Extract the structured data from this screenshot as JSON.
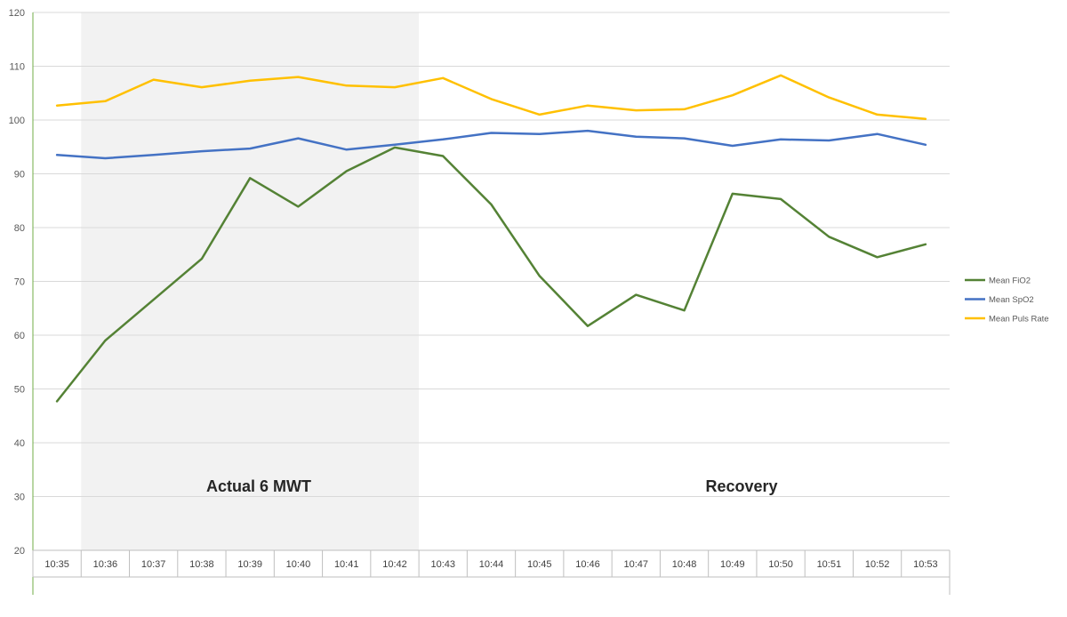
{
  "chart_data": {
    "type": "line",
    "title": "",
    "xlabel": "",
    "ylabel": "",
    "ylim": [
      20,
      120
    ],
    "yticks": [
      20,
      30,
      40,
      50,
      60,
      70,
      80,
      90,
      100,
      110,
      120
    ],
    "grid": true,
    "legend_position": "right",
    "categories": [
      "10:35",
      "10:36",
      "10:37",
      "10:38",
      "10:39",
      "10:40",
      "10:41",
      "10:42",
      "10:43",
      "10:44",
      "10:45",
      "10:46",
      "10:47",
      "10:48",
      "10:49",
      "10:50",
      "10:51",
      "10:52",
      "10:53"
    ],
    "series": [
      {
        "name": "Mean FiO2",
        "color": "#548235",
        "values": [
          47.7,
          59.0,
          66.6,
          74.2,
          89.2,
          83.9,
          90.5,
          94.9,
          93.3,
          84.3,
          71.0,
          61.7,
          67.5,
          64.6,
          86.3,
          85.3,
          78.3,
          74.5,
          76.9
        ]
      },
      {
        "name": "Mean SpO2",
        "color": "#4472C4",
        "values": [
          93.5,
          92.9,
          93.5,
          94.2,
          94.7,
          96.6,
          94.5,
          95.4,
          96.4,
          97.6,
          97.4,
          98.0,
          96.9,
          96.6,
          95.2,
          96.4,
          96.2,
          97.4,
          95.4
        ]
      },
      {
        "name": "Mean Puls Rate",
        "color": "#FFC000",
        "values": [
          102.7,
          103.5,
          107.5,
          106.1,
          107.3,
          108.0,
          106.4,
          106.1,
          107.8,
          103.9,
          101.0,
          102.7,
          101.8,
          102.0,
          104.6,
          108.3,
          104.2,
          101.0,
          100.2
        ]
      }
    ],
    "shaded_region": {
      "from_category": "10:36",
      "to_category": "10:42",
      "color": "#F2F2F2"
    },
    "annotations": [
      {
        "text": "Actual 6 MWT"
      },
      {
        "text": "Recovery"
      }
    ]
  }
}
